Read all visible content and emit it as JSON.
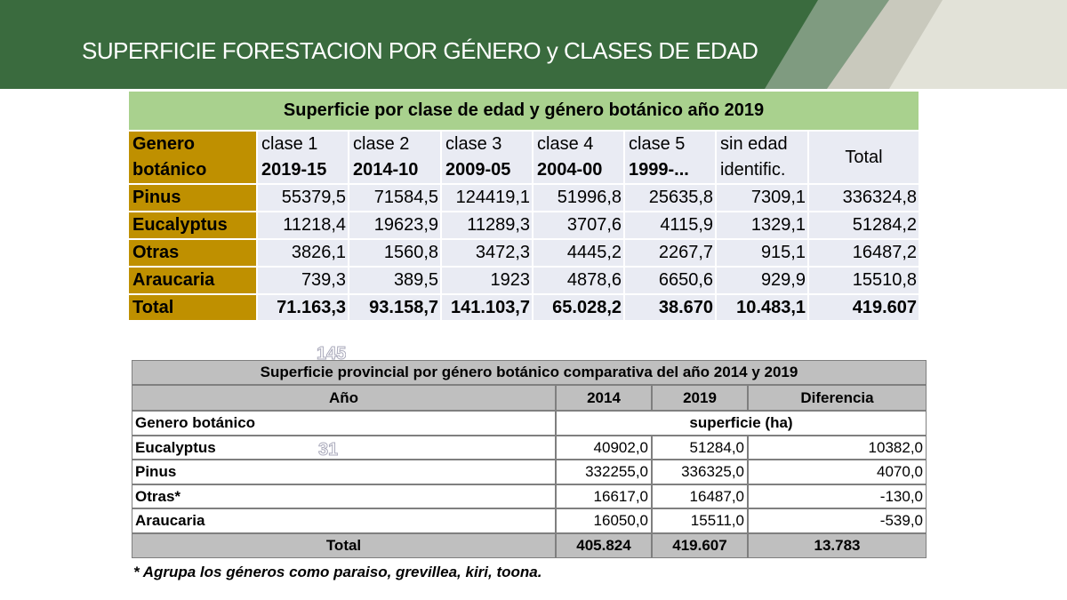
{
  "header": {
    "title": "SUPERFICIE FORESTACION POR GÉNERO  y CLASES DE EDAD"
  },
  "table1": {
    "title": "Superficie por clase de edad y género botánico año 2019",
    "columns": [
      [
        "Genero",
        "botánico"
      ],
      [
        "clase 1",
        "2019-15"
      ],
      [
        "clase 2",
        "2014-10"
      ],
      [
        "clase 3",
        "2009-05"
      ],
      [
        "clase 4",
        "2004-00"
      ],
      [
        "clase 5",
        "1999-..."
      ],
      [
        "sin edad",
        "identific."
      ],
      [
        "Total"
      ]
    ],
    "rows": [
      [
        "Pinus",
        "55379,5",
        "71584,5",
        "124419,1",
        "51996,8",
        "25635,8",
        "7309,1",
        "336324,8"
      ],
      [
        "Eucalyptus",
        "11218,4",
        "19623,9",
        "11289,3",
        "3707,6",
        "4115,9",
        "1329,1",
        "51284,2"
      ],
      [
        "Otras",
        "3826,1",
        "1560,8",
        "3472,3",
        "4445,2",
        "2267,7",
        "915,1",
        "16487,2"
      ],
      [
        "Araucaria",
        "739,3",
        "389,5",
        "1923",
        "4878,6",
        "6650,6",
        "929,9",
        "15510,8"
      ],
      [
        "Total",
        "71.163,3",
        "93.158,7",
        "141.103,7",
        "65.028,2",
        "38.670",
        "10.483,1",
        "419.607"
      ]
    ]
  },
  "table2": {
    "title": "Superficie provincial por género botánico comparativa del año 2014 y 2019",
    "columns": [
      "Año",
      "2014",
      "2019",
      "Diferencia"
    ],
    "subheader": [
      "Genero botánico",
      "superficie (ha)"
    ],
    "rows": [
      [
        "Eucalyptus",
        "40902,0",
        "51284,0",
        "10382,0"
      ],
      [
        "Pinus",
        "332255,0",
        "336325,0",
        "4070,0"
      ],
      [
        "Otras*",
        "16617,0",
        "16487,0",
        "-130,0"
      ],
      [
        "Araucaria",
        "16050,0",
        "15511,0",
        "-539,0"
      ]
    ],
    "total": [
      "Total",
      "405.824",
      "419.607",
      "13.783"
    ],
    "footnote": "* Agrupa los géneros como paraiso, grevillea, kiri, toona."
  },
  "artifacts": [
    "145",
    "31"
  ]
}
